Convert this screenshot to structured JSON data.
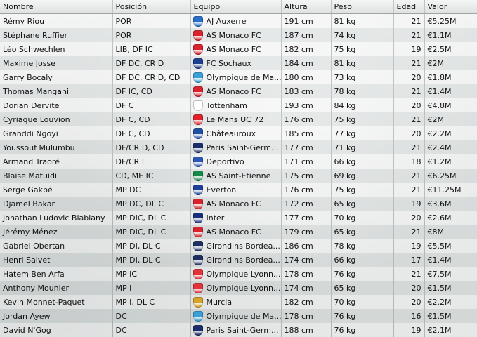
{
  "columns": {
    "name": "Nombre",
    "position": "Posición",
    "club": "Equipo",
    "height": "Altura",
    "weight": "Peso",
    "age": "Edad",
    "value": "Valor"
  },
  "players": [
    {
      "name": "Rémy Riou",
      "position": "POR",
      "club": "AJ Auxerre",
      "crest": "auxerre-crest-icon",
      "crest_color": "#2a6fc9",
      "height": "191 cm",
      "weight": "81 kg",
      "age": "21",
      "value": "€5.25M"
    },
    {
      "name": "Stéphane Ruffier",
      "position": "POR",
      "club": "AS Monaco FC",
      "crest": "monaco-crest-icon",
      "crest_color": "#d9232e",
      "height": "187 cm",
      "weight": "74 kg",
      "age": "21",
      "value": "€1.1M"
    },
    {
      "name": "Léo Schwechlen",
      "position": "LIB, DF IC",
      "club": "AS Monaco FC",
      "crest": "monaco-crest-icon",
      "crest_color": "#d9232e",
      "height": "182 cm",
      "weight": "75 kg",
      "age": "19",
      "value": "€2.5M"
    },
    {
      "name": "Maxime Josse",
      "position": "DF DC, CR D",
      "club": "FC Sochaux",
      "crest": "sochaux-crest-icon",
      "crest_color": "#1d3f8f",
      "height": "184 cm",
      "weight": "81 kg",
      "age": "21",
      "value": "€2M"
    },
    {
      "name": "Garry Bocaly",
      "position": "DF DC, CR D, CD",
      "club": "Olympique de Ma...",
      "crest": "marseille-crest-icon",
      "crest_color": "#3aa0d8",
      "height": "180 cm",
      "weight": "73 kg",
      "age": "20",
      "value": "€1.8M"
    },
    {
      "name": "Thomas Mangani",
      "position": "DF IC, CD",
      "club": "AS Monaco FC",
      "crest": "monaco-crest-icon",
      "crest_color": "#d9232e",
      "height": "183 cm",
      "weight": "78 kg",
      "age": "21",
      "value": "€1.4M"
    },
    {
      "name": "Dorian Dervite",
      "position": "DF C",
      "club": "Tottenham",
      "crest": "tottenham-crest-icon",
      "crest_color": "#ffffff",
      "height": "193 cm",
      "weight": "84 kg",
      "age": "20",
      "value": "€4.8M"
    },
    {
      "name": "Cyriaque Louvion",
      "position": "DF C, CD",
      "club": "Le Mans UC 72",
      "crest": "lemans-crest-icon",
      "crest_color": "#e0202a",
      "height": "176 cm",
      "weight": "75 kg",
      "age": "21",
      "value": "€2M"
    },
    {
      "name": "Granddi Ngoyi",
      "position": "DF C, CD",
      "club": "Châteauroux",
      "crest": "chateauroux-crest-icon",
      "crest_color": "#1e4fa3",
      "height": "185 cm",
      "weight": "77 kg",
      "age": "20",
      "value": "€2.2M"
    },
    {
      "name": "Youssouf Mulumbu",
      "position": "DF/CR D, CD",
      "club": "Paris Saint-Germ...",
      "crest": "psg-crest-icon",
      "crest_color": "#1b2c6b",
      "height": "177 cm",
      "weight": "71 kg",
      "age": "21",
      "value": "€2.4M"
    },
    {
      "name": "Armand Traoré",
      "position": "DF/CR I",
      "club": "Deportivo",
      "crest": "deportivo-crest-icon",
      "crest_color": "#2b57b5",
      "height": "171 cm",
      "weight": "66 kg",
      "age": "18",
      "value": "€1.2M"
    },
    {
      "name": "Blaise Matuidi",
      "position": "CD, ME IC",
      "club": "AS Saint-Etienne",
      "crest": "saint-etienne-crest-icon",
      "crest_color": "#13894a",
      "height": "175 cm",
      "weight": "69 kg",
      "age": "21",
      "value": "€6.25M"
    },
    {
      "name": "Serge Gakpé",
      "position": "MP DC",
      "club": "Everton",
      "crest": "everton-crest-icon",
      "crest_color": "#1b3f9a",
      "height": "176 cm",
      "weight": "75 kg",
      "age": "21",
      "value": "€11.25M"
    },
    {
      "name": "Djamel Bakar",
      "position": "MP DC, DL C",
      "club": "AS Monaco FC",
      "crest": "monaco-crest-icon",
      "crest_color": "#d9232e",
      "height": "172 cm",
      "weight": "65 kg",
      "age": "19",
      "value": "€3.6M"
    },
    {
      "name": "Jonathan Ludovic Biabiany",
      "position": "MP DIC, DL C",
      "club": "Inter",
      "crest": "inter-crest-icon",
      "crest_color": "#1a2f7a",
      "height": "177 cm",
      "weight": "70 kg",
      "age": "20",
      "value": "€2.6M"
    },
    {
      "name": "Jérémy Ménez",
      "position": "MP DIC, DL C",
      "club": "AS Monaco FC",
      "crest": "monaco-crest-icon",
      "crest_color": "#d9232e",
      "height": "179 cm",
      "weight": "65 kg",
      "age": "21",
      "value": "€8M"
    },
    {
      "name": "Gabriel Obertan",
      "position": "MP DI, DL C",
      "club": "Girondins Bordea...",
      "crest": "bordeaux-crest-icon",
      "crest_color": "#1d2f63",
      "height": "186 cm",
      "weight": "78 kg",
      "age": "19",
      "value": "€5.5M"
    },
    {
      "name": "Henri Saivet",
      "position": "MP DI, DL C",
      "club": "Girondins Bordea...",
      "crest": "bordeaux-crest-icon",
      "crest_color": "#1d2f63",
      "height": "174 cm",
      "weight": "66 kg",
      "age": "17",
      "value": "€1.4M"
    },
    {
      "name": "Hatem Ben Arfa",
      "position": "MP IC",
      "club": "Olympique Lyonn...",
      "crest": "lyon-crest-icon",
      "crest_color": "#e5333c",
      "height": "178 cm",
      "weight": "76 kg",
      "age": "21",
      "value": "€7.5M"
    },
    {
      "name": "Anthony Mounier",
      "position": "MP I",
      "club": "Olympique Lyonn...",
      "crest": "lyon-crest-icon",
      "crest_color": "#e5333c",
      "height": "174 cm",
      "weight": "65 kg",
      "age": "20",
      "value": "€1.5M"
    },
    {
      "name": "Kevin Monnet-Paquet",
      "position": "MP I, DL C",
      "club": "Murcia",
      "crest": "murcia-crest-icon",
      "crest_color": "#d8a32a",
      "height": "182 cm",
      "weight": "70 kg",
      "age": "20",
      "value": "€2.2M"
    },
    {
      "name": "Jordan Ayew",
      "position": "DC",
      "club": "Olympique de Ma...",
      "crest": "marseille-crest-icon",
      "crest_color": "#3aa0d8",
      "height": "178 cm",
      "weight": "76 kg",
      "age": "16",
      "value": "€1.5M"
    },
    {
      "name": "David N'Gog",
      "position": "DC",
      "club": "Paris Saint-Germ...",
      "crest": "psg-crest-icon",
      "crest_color": "#1b2c6b",
      "height": "188 cm",
      "weight": "76 kg",
      "age": "19",
      "value": "€2.1M"
    }
  ]
}
